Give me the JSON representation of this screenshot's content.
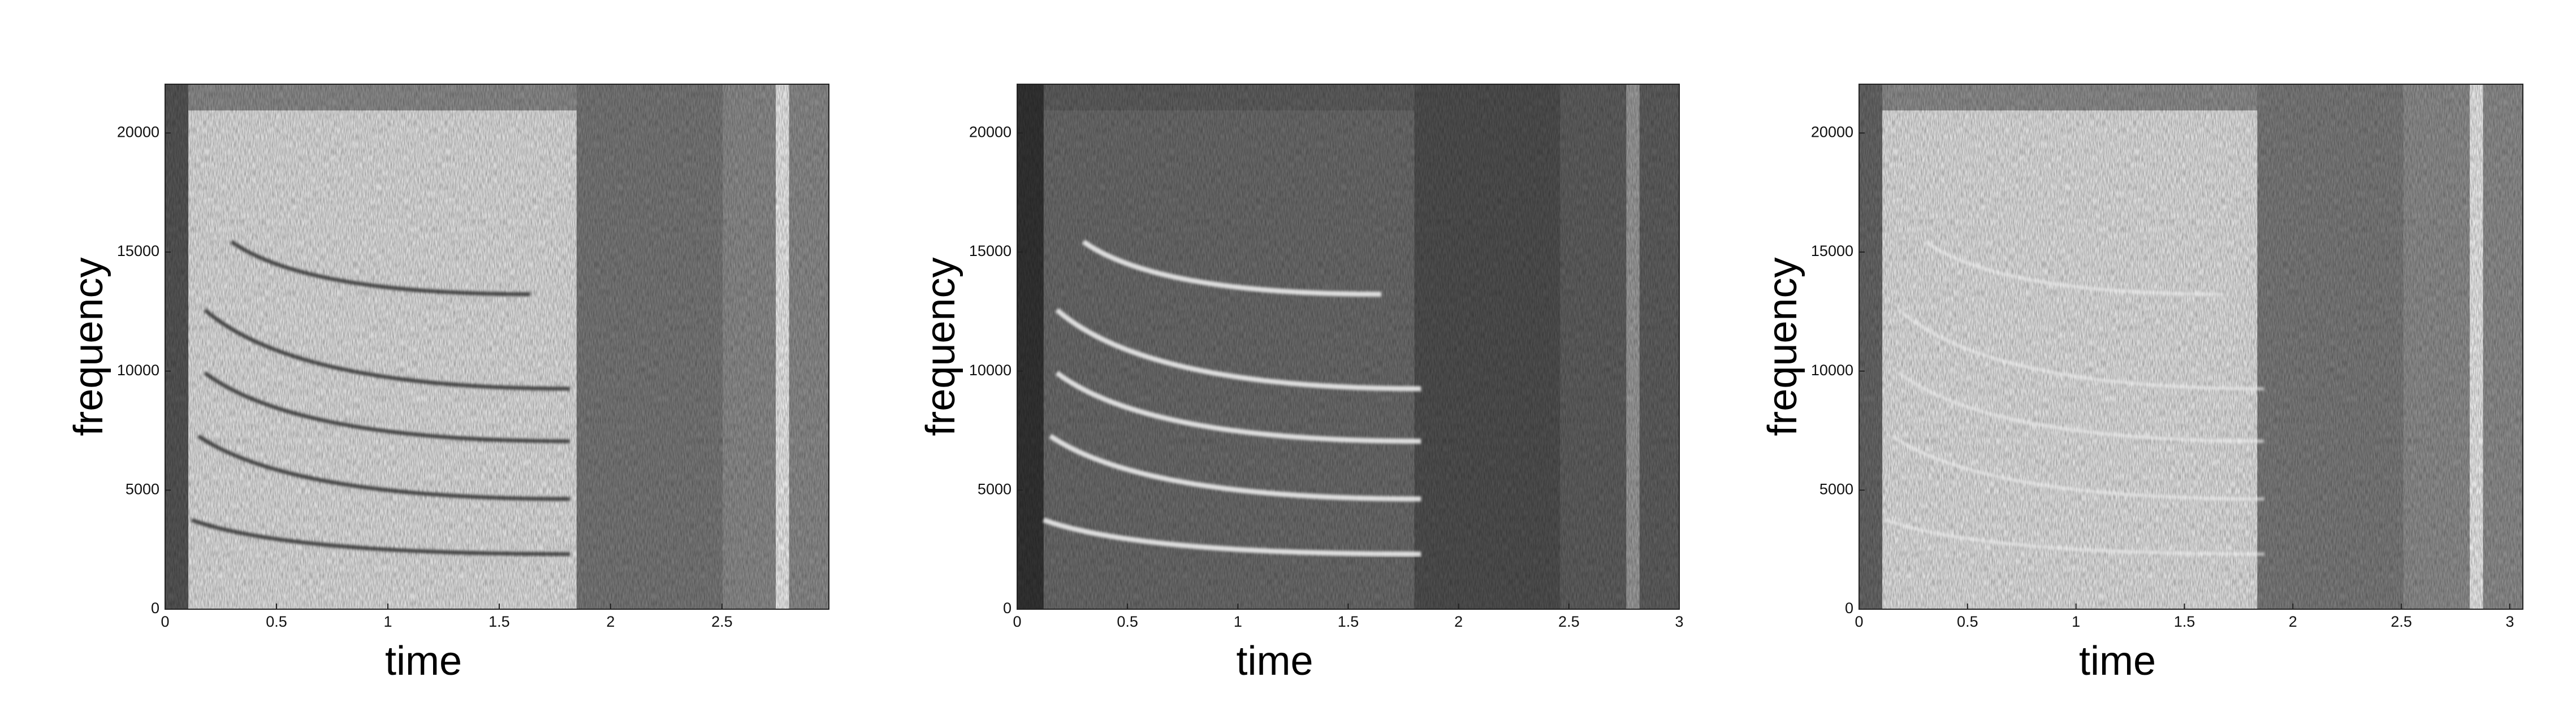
{
  "chart_data": [
    {
      "type": "spectrogram",
      "x_label": "time",
      "y_label": "frequency",
      "xlim": [
        0,
        2.98
      ],
      "xticks": [
        0,
        0.5,
        1,
        1.5,
        2,
        2.5
      ],
      "ylim": [
        0,
        22050
      ],
      "yticks": [
        0,
        5000,
        10000,
        15000,
        20000
      ]
    },
    {
      "type": "spectrogram",
      "x_label": "time",
      "y_label": "frequency",
      "xlim": [
        0,
        3
      ],
      "xticks": [
        0,
        0.5,
        1,
        1.5,
        2,
        2.5,
        3
      ],
      "ylim": [
        0,
        22050
      ],
      "yticks": [
        0,
        5000,
        10000,
        15000,
        20000
      ]
    },
    {
      "type": "spectrogram",
      "x_label": "time",
      "y_label": "frequency",
      "xlim": [
        0,
        3.06
      ],
      "xticks": [
        0,
        0.5,
        1,
        1.5,
        2,
        2.5,
        3
      ],
      "ylim": [
        0,
        22050
      ],
      "yticks": [
        0,
        5000,
        10000,
        15000,
        20000
      ]
    }
  ]
}
